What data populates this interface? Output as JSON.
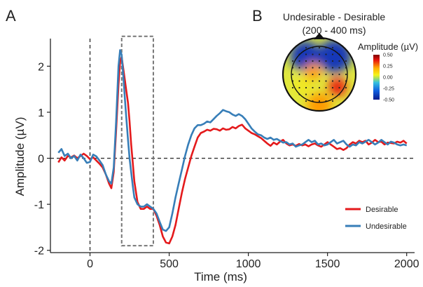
{
  "panels": {
    "a_label": "A",
    "b_label": "B"
  },
  "colors": {
    "desirable": "#e41a1c",
    "undesirable": "#377eb8",
    "axis": "#222222",
    "dashed": "#333333",
    "window_box": "#777777"
  },
  "chart_data": [
    {
      "type": "line",
      "panel": "A",
      "title": "",
      "xlabel": "Time (ms)",
      "ylabel": "Amplitude (µV)",
      "xlim": [
        -250,
        2050
      ],
      "ylim": [
        -2.05,
        2.6
      ],
      "xticks": [
        0,
        500,
        1000,
        1500,
        2000
      ],
      "xtick_labels": [
        "0",
        "500",
        "1000",
        "1500",
        "2000"
      ],
      "yticks": [
        -2,
        -1,
        0,
        1,
        2
      ],
      "ytick_labels": [
        "-2",
        "-1",
        "0",
        "1",
        "2"
      ],
      "grid": false,
      "legend_position": "bottom-right",
      "reference_lines": [
        {
          "orientation": "horizontal",
          "value": 0,
          "style": "dashed"
        },
        {
          "orientation": "vertical",
          "value": 0,
          "style": "dashed"
        }
      ],
      "highlight_window": {
        "x_start": 200,
        "x_end": 400,
        "y_min": -1.9,
        "y_max": 2.65,
        "style": "dashed"
      },
      "series": [
        {
          "name": "Desirable",
          "color_key": "desirable",
          "points": [
            [
              -200,
              -0.09
            ],
            [
              -180,
              0.02
            ],
            [
              -160,
              -0.05
            ],
            [
              -140,
              0.05
            ],
            [
              -120,
              0.02
            ],
            [
              -100,
              0.06
            ],
            [
              -80,
              0.0
            ],
            [
              -60,
              0.05
            ],
            [
              -40,
              0.1
            ],
            [
              -20,
              0.05
            ],
            [
              0,
              -0.02
            ],
            [
              20,
              0.02
            ],
            [
              40,
              -0.05
            ],
            [
              60,
              -0.12
            ],
            [
              80,
              -0.2
            ],
            [
              100,
              -0.35
            ],
            [
              120,
              -0.55
            ],
            [
              135,
              -0.65
            ],
            [
              150,
              -0.3
            ],
            [
              165,
              0.6
            ],
            [
              180,
              1.6
            ],
            [
              190,
              2.1
            ],
            [
              200,
              2.2
            ],
            [
              210,
              1.95
            ],
            [
              220,
              1.7
            ],
            [
              230,
              1.45
            ],
            [
              240,
              1.2
            ],
            [
              250,
              0.8
            ],
            [
              260,
              0.3
            ],
            [
              270,
              -0.1
            ],
            [
              280,
              -0.5
            ],
            [
              300,
              -0.95
            ],
            [
              320,
              -1.1
            ],
            [
              340,
              -1.1
            ],
            [
              360,
              -1.05
            ],
            [
              380,
              -1.1
            ],
            [
              400,
              -1.1
            ],
            [
              420,
              -1.25
            ],
            [
              440,
              -1.45
            ],
            [
              460,
              -1.7
            ],
            [
              480,
              -1.83
            ],
            [
              500,
              -1.85
            ],
            [
              520,
              -1.7
            ],
            [
              540,
              -1.45
            ],
            [
              560,
              -1.1
            ],
            [
              580,
              -0.75
            ],
            [
              600,
              -0.45
            ],
            [
              620,
              -0.2
            ],
            [
              640,
              0.05
            ],
            [
              660,
              0.25
            ],
            [
              680,
              0.45
            ],
            [
              700,
              0.55
            ],
            [
              720,
              0.58
            ],
            [
              740,
              0.62
            ],
            [
              760,
              0.6
            ],
            [
              780,
              0.64
            ],
            [
              800,
              0.63
            ],
            [
              820,
              0.6
            ],
            [
              840,
              0.65
            ],
            [
              860,
              0.62
            ],
            [
              880,
              0.63
            ],
            [
              900,
              0.68
            ],
            [
              920,
              0.65
            ],
            [
              940,
              0.7
            ],
            [
              960,
              0.73
            ],
            [
              980,
              0.65
            ],
            [
              1000,
              0.6
            ],
            [
              1020,
              0.55
            ],
            [
              1040,
              0.52
            ],
            [
              1060,
              0.48
            ],
            [
              1080,
              0.44
            ],
            [
              1100,
              0.38
            ],
            [
              1120,
              0.32
            ],
            [
              1140,
              0.27
            ],
            [
              1160,
              0.34
            ],
            [
              1180,
              0.3
            ],
            [
              1200,
              0.36
            ],
            [
              1220,
              0.4
            ],
            [
              1240,
              0.32
            ],
            [
              1260,
              0.28
            ],
            [
              1280,
              0.3
            ],
            [
              1300,
              0.27
            ],
            [
              1320,
              0.31
            ],
            [
              1340,
              0.28
            ],
            [
              1360,
              0.3
            ],
            [
              1380,
              0.26
            ],
            [
              1400,
              0.3
            ],
            [
              1420,
              0.32
            ],
            [
              1440,
              0.28
            ],
            [
              1460,
              0.25
            ],
            [
              1480,
              0.3
            ],
            [
              1500,
              0.35
            ],
            [
              1520,
              0.3
            ],
            [
              1540,
              0.25
            ],
            [
              1560,
              0.2
            ],
            [
              1580,
              0.22
            ],
            [
              1600,
              0.18
            ],
            [
              1620,
              0.22
            ],
            [
              1640,
              0.3
            ],
            [
              1660,
              0.35
            ],
            [
              1680,
              0.32
            ],
            [
              1700,
              0.38
            ],
            [
              1720,
              0.35
            ],
            [
              1740,
              0.38
            ],
            [
              1760,
              0.3
            ],
            [
              1780,
              0.34
            ],
            [
              1800,
              0.4
            ],
            [
              1820,
              0.35
            ],
            [
              1840,
              0.36
            ],
            [
              1860,
              0.3
            ],
            [
              1880,
              0.34
            ],
            [
              1900,
              0.33
            ],
            [
              1920,
              0.32
            ],
            [
              1940,
              0.36
            ],
            [
              1960,
              0.34
            ],
            [
              1980,
              0.38
            ],
            [
              2000,
              0.32
            ]
          ]
        },
        {
          "name": "Undesirable",
          "color_key": "undesirable",
          "points": [
            [
              -200,
              0.12
            ],
            [
              -180,
              0.2
            ],
            [
              -160,
              0.05
            ],
            [
              -140,
              0.1
            ],
            [
              -120,
              0.0
            ],
            [
              -100,
              0.05
            ],
            [
              -80,
              -0.05
            ],
            [
              -60,
              0.08
            ],
            [
              -40,
              0.0
            ],
            [
              -20,
              -0.1
            ],
            [
              0,
              -0.08
            ],
            [
              20,
              0.08
            ],
            [
              40,
              0.04
            ],
            [
              60,
              -0.05
            ],
            [
              80,
              -0.15
            ],
            [
              100,
              -0.35
            ],
            [
              120,
              -0.5
            ],
            [
              135,
              -0.55
            ],
            [
              150,
              -0.2
            ],
            [
              165,
              0.8
            ],
            [
              180,
              2.0
            ],
            [
              190,
              2.35
            ],
            [
              200,
              2.25
            ],
            [
              210,
              1.8
            ],
            [
              220,
              1.3
            ],
            [
              230,
              0.85
            ],
            [
              240,
              0.4
            ],
            [
              250,
              0.0
            ],
            [
              260,
              -0.3
            ],
            [
              270,
              -0.6
            ],
            [
              280,
              -0.85
            ],
            [
              300,
              -1.0
            ],
            [
              320,
              -1.05
            ],
            [
              340,
              -1.05
            ],
            [
              360,
              -1.0
            ],
            [
              380,
              -1.05
            ],
            [
              400,
              -1.1
            ],
            [
              420,
              -1.2
            ],
            [
              440,
              -1.38
            ],
            [
              460,
              -1.55
            ],
            [
              480,
              -1.58
            ],
            [
              500,
              -1.5
            ],
            [
              520,
              -1.2
            ],
            [
              540,
              -0.85
            ],
            [
              560,
              -0.55
            ],
            [
              580,
              -0.25
            ],
            [
              600,
              0.05
            ],
            [
              620,
              0.3
            ],
            [
              640,
              0.5
            ],
            [
              660,
              0.65
            ],
            [
              680,
              0.72
            ],
            [
              700,
              0.72
            ],
            [
              720,
              0.75
            ],
            [
              740,
              0.8
            ],
            [
              760,
              0.78
            ],
            [
              780,
              0.85
            ],
            [
              800,
              0.92
            ],
            [
              820,
              0.98
            ],
            [
              840,
              1.05
            ],
            [
              860,
              1.02
            ],
            [
              880,
              1.0
            ],
            [
              900,
              0.95
            ],
            [
              920,
              0.92
            ],
            [
              940,
              0.96
            ],
            [
              960,
              0.92
            ],
            [
              980,
              0.85
            ],
            [
              1000,
              0.75
            ],
            [
              1020,
              0.65
            ],
            [
              1040,
              0.58
            ],
            [
              1060,
              0.52
            ],
            [
              1080,
              0.5
            ],
            [
              1100,
              0.45
            ],
            [
              1120,
              0.42
            ],
            [
              1140,
              0.45
            ],
            [
              1160,
              0.4
            ],
            [
              1180,
              0.42
            ],
            [
              1200,
              0.38
            ],
            [
              1220,
              0.34
            ],
            [
              1240,
              0.35
            ],
            [
              1260,
              0.3
            ],
            [
              1280,
              0.32
            ],
            [
              1300,
              0.25
            ],
            [
              1320,
              0.28
            ],
            [
              1340,
              0.3
            ],
            [
              1360,
              0.35
            ],
            [
              1380,
              0.4
            ],
            [
              1400,
              0.35
            ],
            [
              1420,
              0.38
            ],
            [
              1440,
              0.3
            ],
            [
              1460,
              0.32
            ],
            [
              1480,
              0.28
            ],
            [
              1500,
              0.3
            ],
            [
              1520,
              0.35
            ],
            [
              1540,
              0.4
            ],
            [
              1560,
              0.32
            ],
            [
              1580,
              0.35
            ],
            [
              1600,
              0.38
            ],
            [
              1620,
              0.3
            ],
            [
              1640,
              0.25
            ],
            [
              1660,
              0.3
            ],
            [
              1680,
              0.28
            ],
            [
              1700,
              0.35
            ],
            [
              1720,
              0.32
            ],
            [
              1740,
              0.36
            ],
            [
              1760,
              0.4
            ],
            [
              1780,
              0.35
            ],
            [
              1800,
              0.3
            ],
            [
              1820,
              0.34
            ],
            [
              1840,
              0.4
            ],
            [
              1860,
              0.35
            ],
            [
              1880,
              0.3
            ],
            [
              1900,
              0.36
            ],
            [
              1920,
              0.34
            ],
            [
              1940,
              0.3
            ],
            [
              1960,
              0.28
            ],
            [
              1980,
              0.3
            ],
            [
              2000,
              0.28
            ]
          ]
        }
      ]
    },
    {
      "type": "heatmap",
      "subtype": "scalp-topography",
      "panel": "B",
      "title": "Undesirable - Desirable",
      "subtitle": "(200 - 400 ms)",
      "colorbar": {
        "title": "Amplitude (µV)",
        "ticks": [
          0.5,
          0.25,
          0.0,
          -0.25,
          -0.5
        ],
        "tick_labels": [
          "0.50",
          "0.25",
          "0.00",
          "-0.25",
          "-0.50"
        ],
        "colormap": "jet"
      },
      "regions": [
        {
          "area": "left-frontal",
          "level": -0.4
        },
        {
          "area": "right-frontal",
          "level": -0.45
        },
        {
          "area": "left-central",
          "level": 0.3
        },
        {
          "area": "left-parietal",
          "level": 0.1
        },
        {
          "area": "right-parietal",
          "level": 0.45
        },
        {
          "area": "occipital",
          "level": 0.25
        }
      ]
    }
  ]
}
